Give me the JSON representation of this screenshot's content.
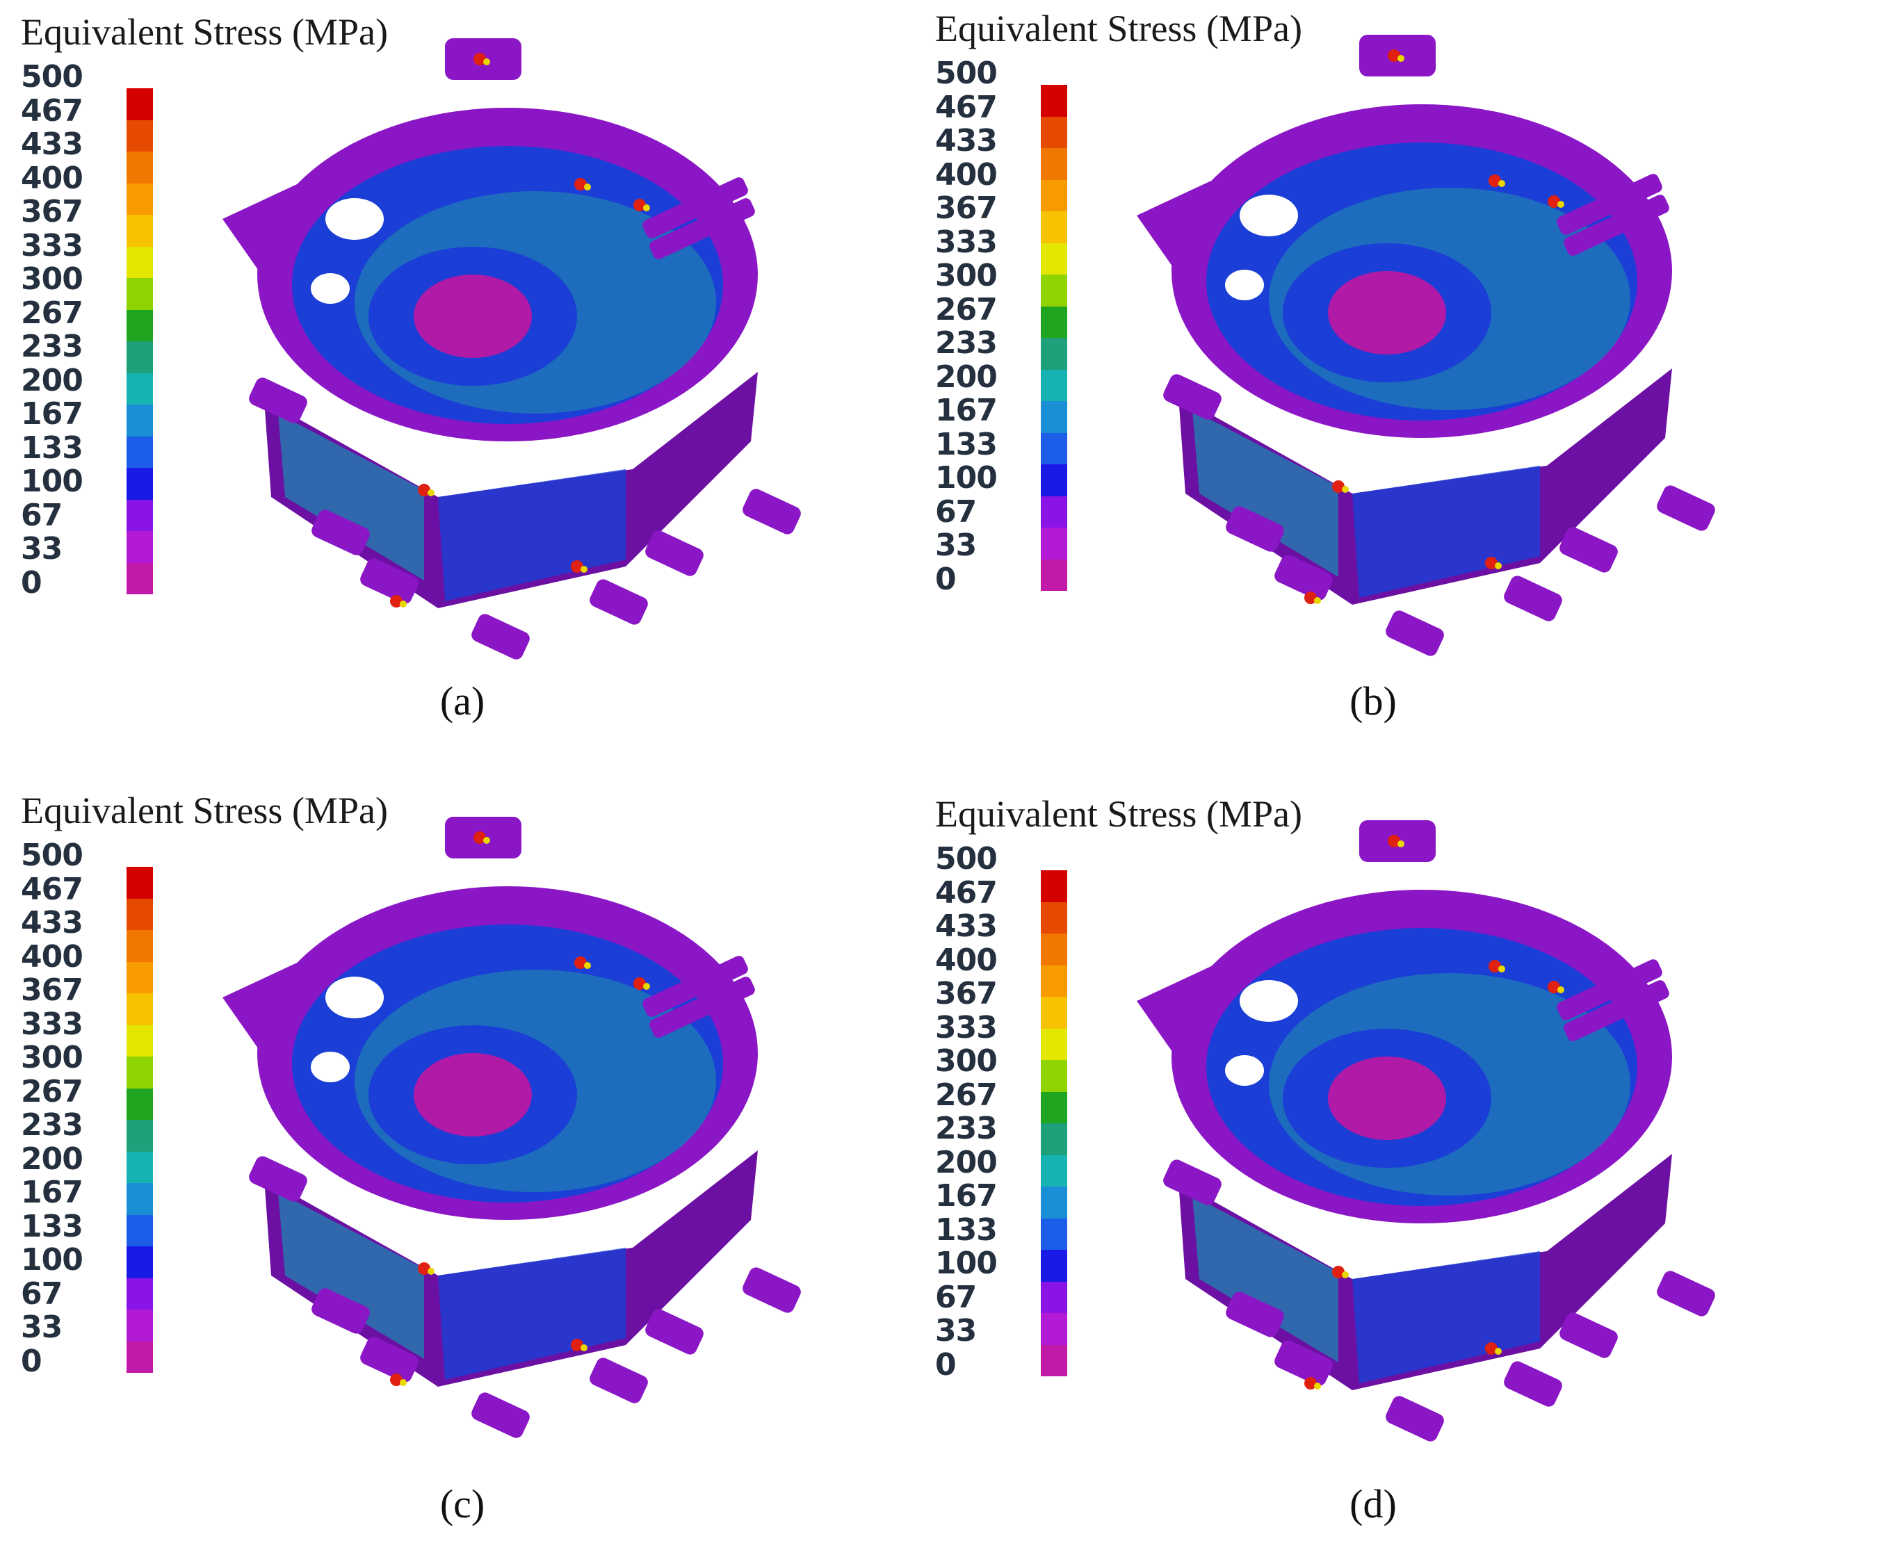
{
  "panels": [
    {
      "id": "a",
      "title": "Equivalent Stress (MPa)",
      "caption": "(a)",
      "colorbar_ticks": [
        "500",
        "467",
        "433",
        "400",
        "367",
        "333",
        "300",
        "267",
        "233",
        "200",
        "167",
        "133",
        "100",
        "67",
        "33",
        "0"
      ]
    },
    {
      "id": "b",
      "title": "Equivalent Stress (MPa)",
      "caption": "(b)",
      "colorbar_ticks": [
        "500",
        "467",
        "433",
        "400",
        "367",
        "333",
        "300",
        "267",
        "233",
        "200",
        "167",
        "133",
        "100",
        "67",
        "33",
        "0"
      ]
    },
    {
      "id": "c",
      "title": "Equivalent Stress (MPa)",
      "caption": "(c)",
      "colorbar_ticks": [
        "500",
        "467",
        "433",
        "400",
        "367",
        "333",
        "300",
        "267",
        "233",
        "200",
        "167",
        "133",
        "100",
        "67",
        "33",
        "0"
      ]
    },
    {
      "id": "d",
      "title": "Equivalent Stress (MPa)",
      "caption": "(d)",
      "colorbar_ticks": [
        "500",
        "467",
        "433",
        "400",
        "367",
        "333",
        "300",
        "267",
        "233",
        "200",
        "167",
        "133",
        "100",
        "67",
        "33",
        "0"
      ]
    }
  ],
  "colorbar_colors": [
    "#d40000",
    "#e64a00",
    "#f07800",
    "#f89b00",
    "#f7c200",
    "#e3e600",
    "#8fd400",
    "#1fa51f",
    "#1ea07a",
    "#17b3b3",
    "#1b8fd6",
    "#1c5ee8",
    "#1a1ae6",
    "#8a14e6",
    "#b21ad6",
    "#c21aa8"
  ],
  "model_colors": {
    "body": "#8a16c6",
    "body_dark": "#6c0fa3",
    "inner_blue": "#1a3ed6",
    "inner_teal": "#1e86b0",
    "hub": "#b01aa6",
    "hot_red": "#e02010",
    "hot_yellow": "#e8d800"
  }
}
